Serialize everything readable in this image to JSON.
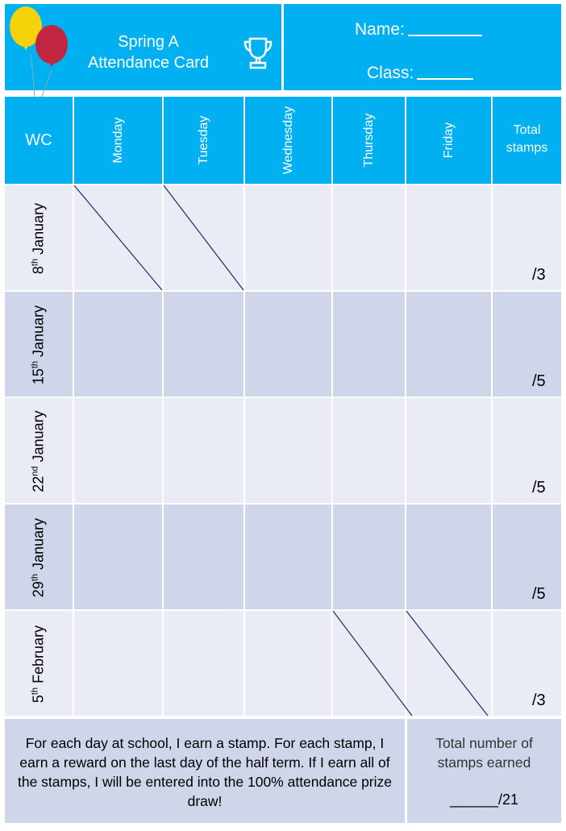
{
  "header": {
    "title_line1": "Spring A",
    "title_line2": "Attendance Card",
    "name_label": "Name:",
    "class_label": "Class:"
  },
  "columns": {
    "wc": "WC",
    "days": [
      "Monday",
      "Tuesday",
      "Wednesday",
      "Thursday",
      "Friday"
    ],
    "total_line1": "Total",
    "total_line2": "stamps"
  },
  "weeks": [
    {
      "day": "8",
      "suffix": "th",
      "month": "January",
      "max": "/3"
    },
    {
      "day": "15",
      "suffix": "th",
      "month": "January",
      "max": "/5"
    },
    {
      "day": "22",
      "suffix": "nd",
      "month": "January",
      "max": "/5"
    },
    {
      "day": "29",
      "suffix": "th",
      "month": "January",
      "max": "/5"
    },
    {
      "day": "5",
      "suffix": "th",
      "month": "February",
      "max": "/3"
    }
  ],
  "footer": {
    "explanation": "For each day at school, I earn a stamp. For each stamp, I earn a reward on the last day of the half term. If I earn all of the stamps, I will be entered into the 100% attendance prize draw!",
    "total_line1": "Total number of",
    "total_line2": "stamps earned",
    "total_score": "______/21"
  },
  "colors": {
    "header_blue": "#00b0f0",
    "row_light": "#e9ecf5",
    "row_dark": "#d0d6ea",
    "balloon_yellow": "#f5d20a",
    "balloon_red": "#c0263f"
  },
  "icons": [
    "balloons-icon",
    "trophy-icon"
  ]
}
